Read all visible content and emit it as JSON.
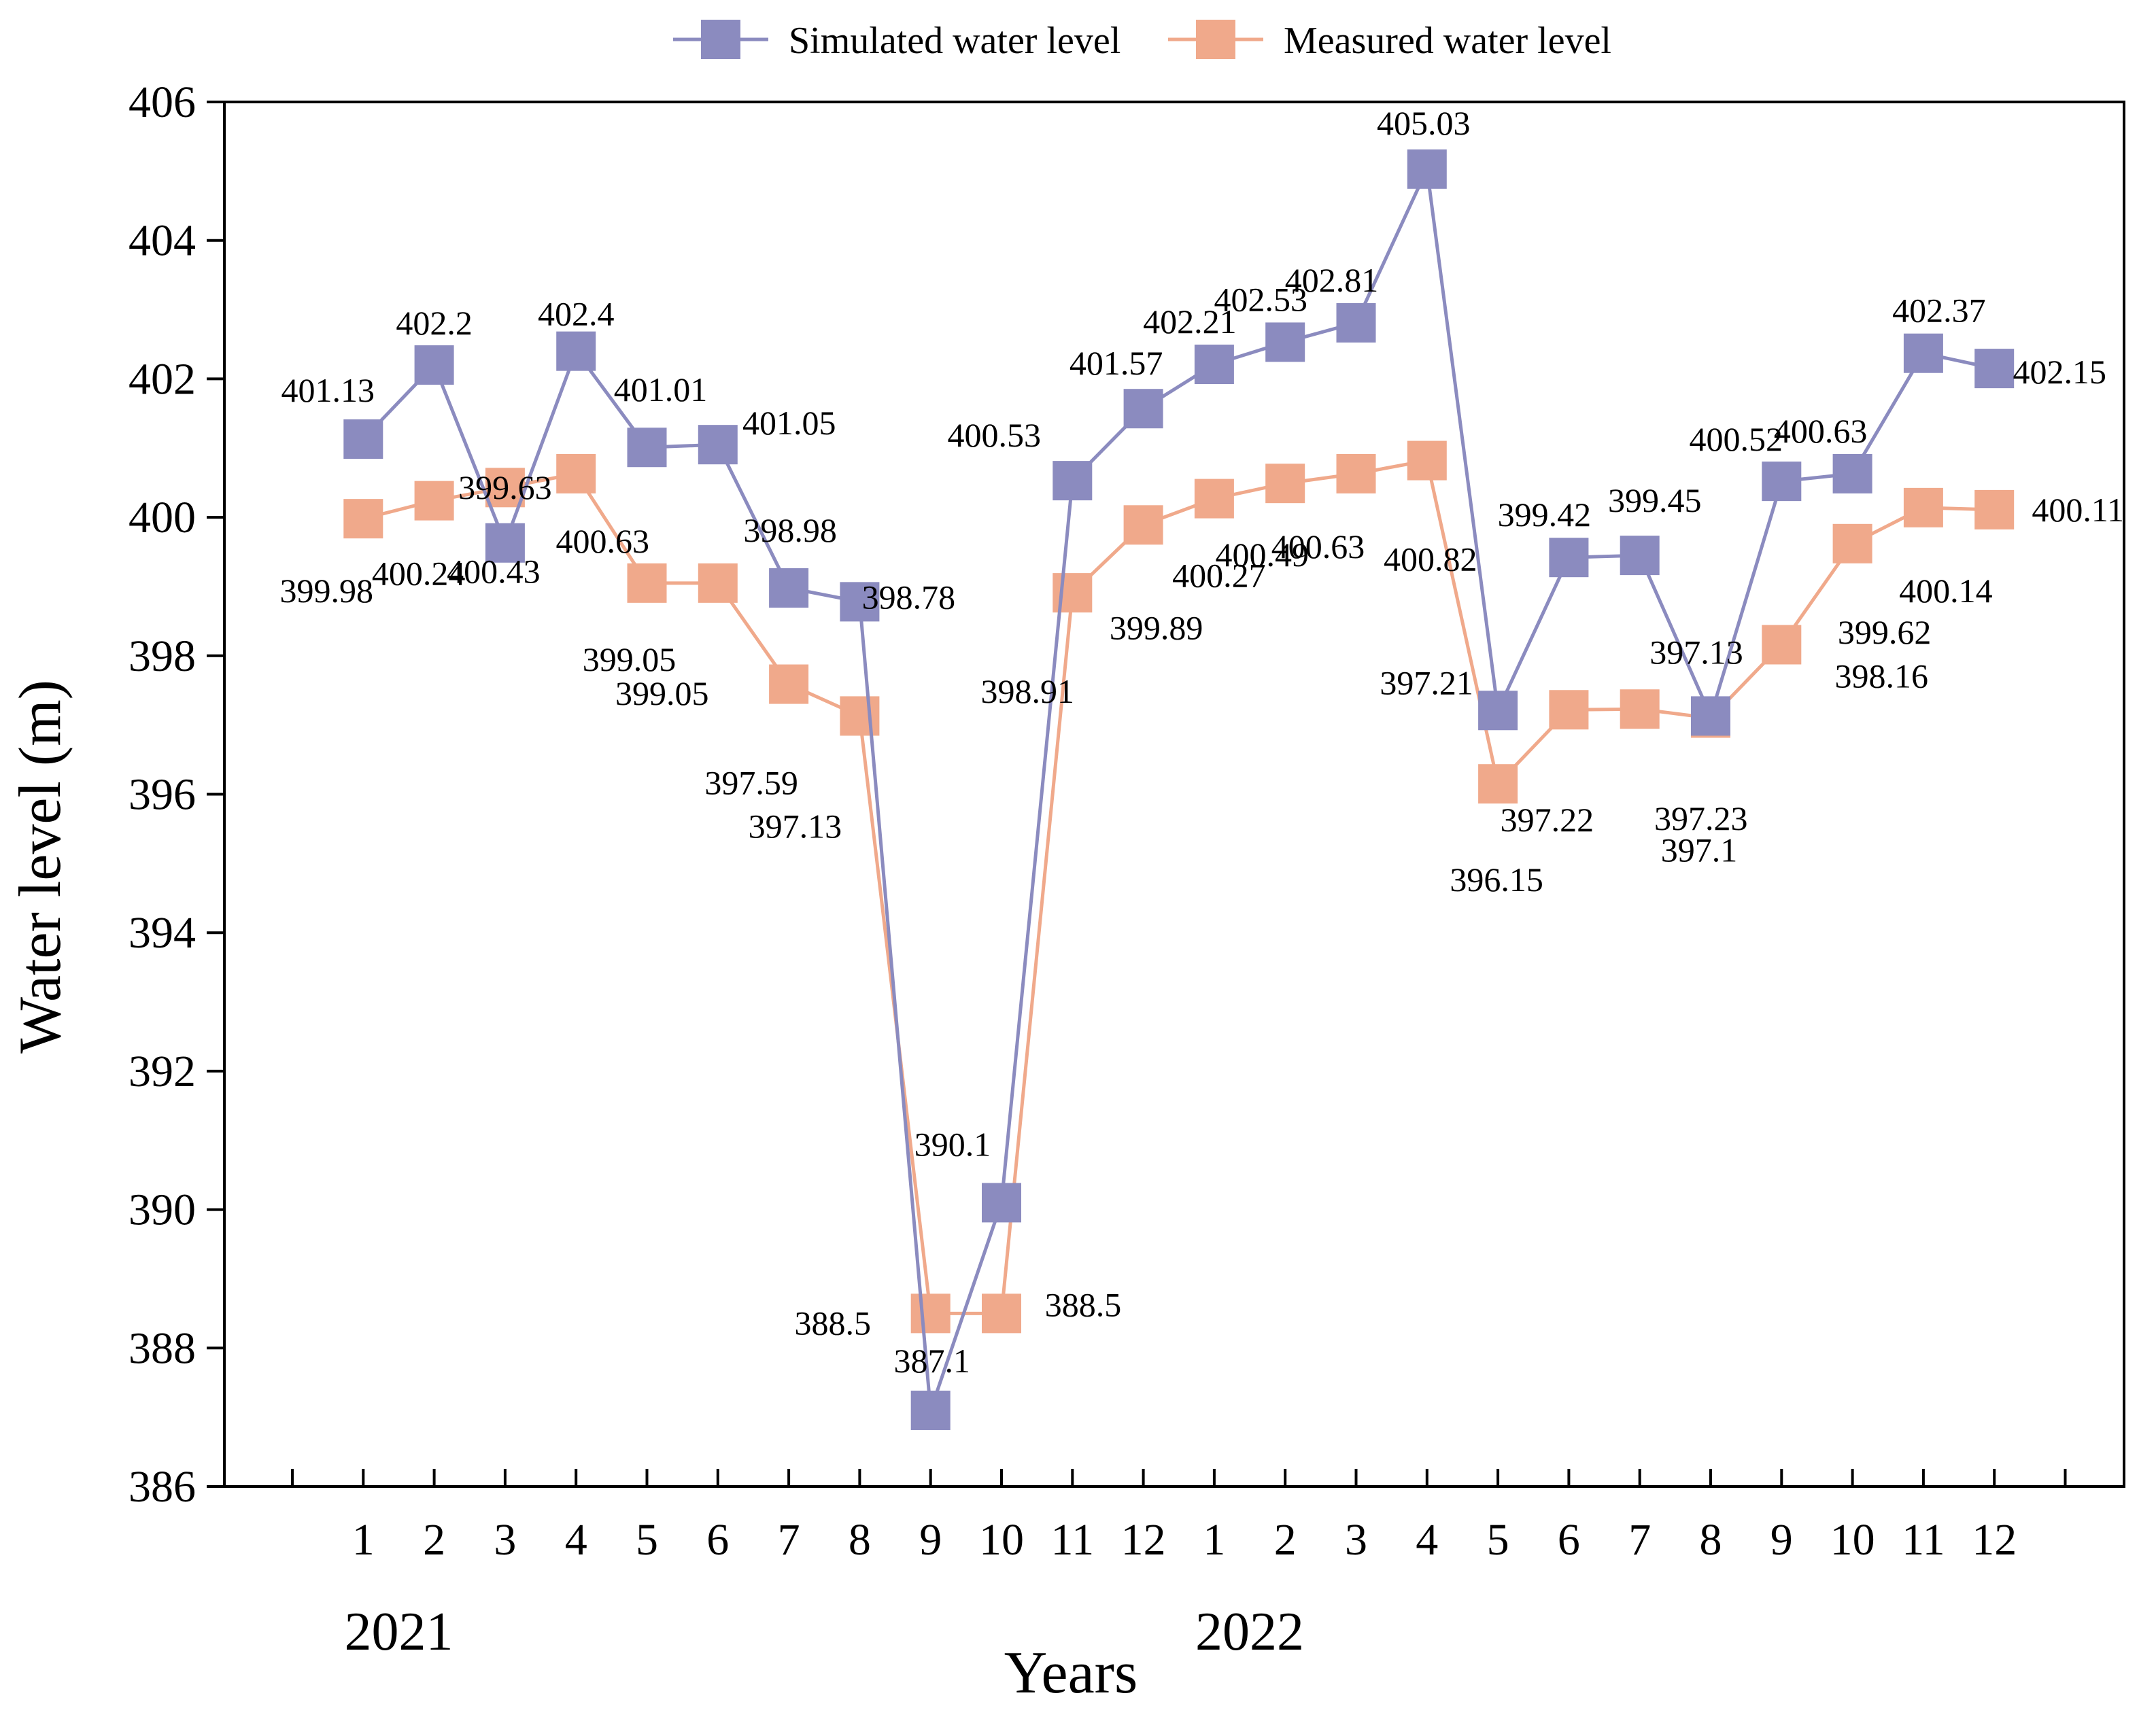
{
  "chart_data": {
    "type": "line",
    "title": "",
    "xlabel": "Years",
    "ylabel": "Water level (m)",
    "ylim": [
      386,
      406
    ],
    "yticks": [
      386,
      388,
      390,
      392,
      394,
      396,
      398,
      400,
      402,
      404,
      406
    ],
    "categories": [
      "1",
      "2",
      "3",
      "4",
      "5",
      "6",
      "7",
      "8",
      "9",
      "10",
      "11",
      "12",
      "1",
      "2",
      "3",
      "4",
      "5",
      "6",
      "7",
      "8",
      "9",
      "10",
      "11",
      "12"
    ],
    "year_groups": [
      {
        "label": "2021",
        "start_index": 0,
        "end_index": 11
      },
      {
        "label": "2022",
        "start_index": 12,
        "end_index": 23
      }
    ],
    "legend_position": "top-center",
    "grid": false,
    "series": [
      {
        "name": "Simulated water level",
        "color": "#8b8bbf",
        "marker": "square",
        "values": [
          401.13,
          402.2,
          399.63,
          402.4,
          401.01,
          401.05,
          398.98,
          398.78,
          387.1,
          390.1,
          400.53,
          401.57,
          402.21,
          402.53,
          402.81,
          405.03,
          397.21,
          399.42,
          399.45,
          397.13,
          400.52,
          400.63,
          402.37,
          402.15
        ],
        "labels": [
          "401.13",
          "402.2",
          "399.63",
          "402.4",
          "401.01",
          "401.05",
          "398.98",
          "398.78",
          "387.1",
          "390.1",
          "400.53",
          "401.57",
          "402.21",
          "402.53",
          "402.81",
          "405.03",
          "397.21",
          "399.42",
          "399.45",
          "397.13",
          "400.52",
          "400.63",
          "402.37",
          "402.15"
        ]
      },
      {
        "name": "Measured water level",
        "color": "#f0a98b",
        "marker": "square",
        "values": [
          399.98,
          400.24,
          400.43,
          400.63,
          399.05,
          399.05,
          397.59,
          397.13,
          388.5,
          388.5,
          398.91,
          399.89,
          400.27,
          400.49,
          400.63,
          400.82,
          396.15,
          397.22,
          397.23,
          397.1,
          398.16,
          399.62,
          400.14,
          400.11
        ],
        "labels": [
          "399.98",
          "400.24",
          "400.43",
          "400.63",
          "399.05",
          "399.05",
          "397.59",
          "397.13",
          "388.5",
          "388.5",
          "398.91",
          "399.89",
          "400.27",
          "400.49",
          "400.63",
          "400.82",
          "396.15",
          "397.22",
          "397.23",
          "397.1",
          "398.16",
          "399.62",
          "400.14",
          "400.11"
        ]
      }
    ]
  }
}
